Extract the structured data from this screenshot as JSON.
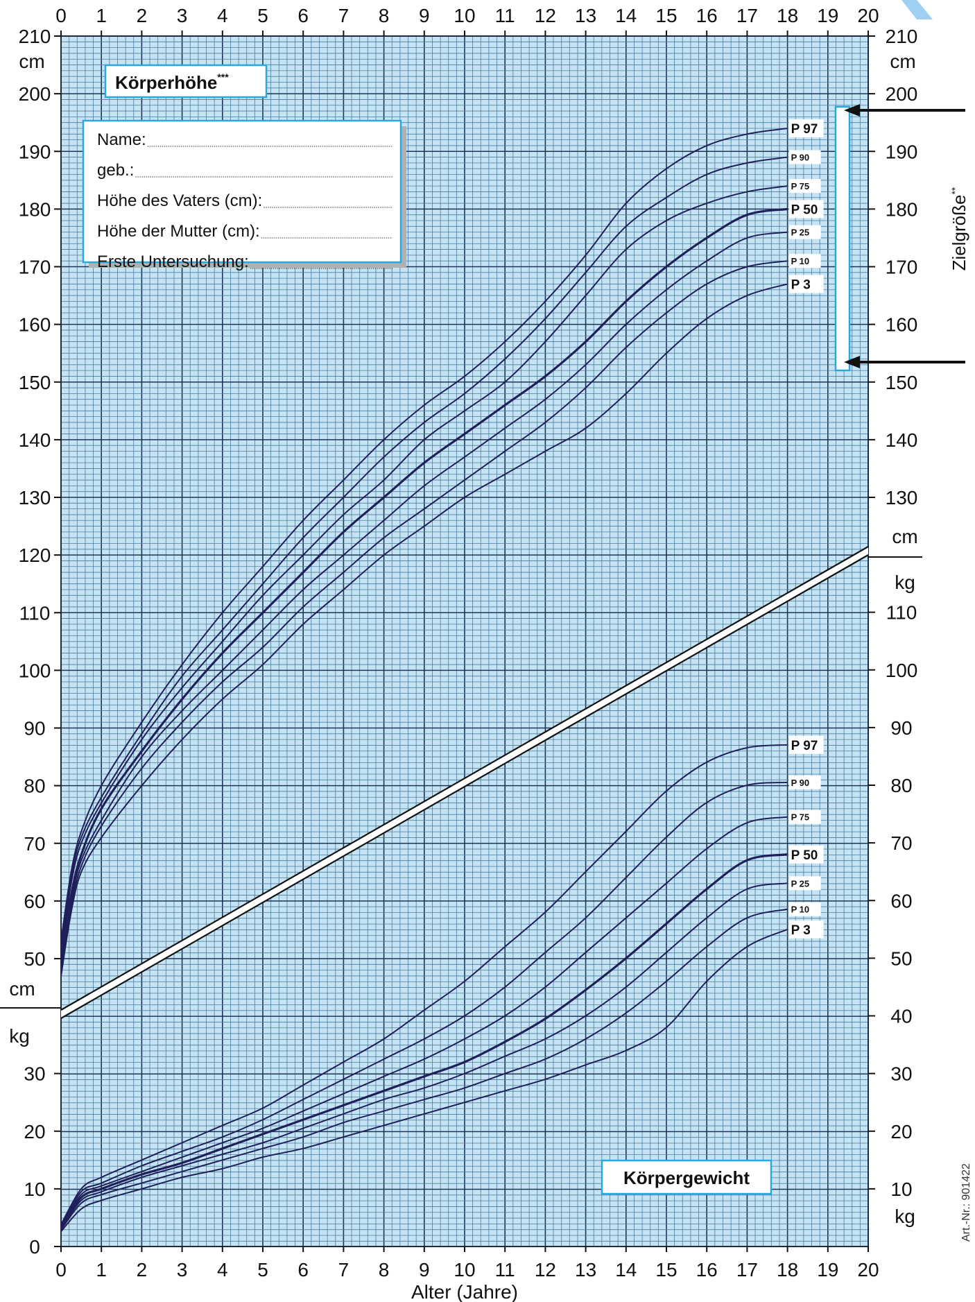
{
  "chart_data": [
    {
      "type": "line",
      "title": "Körperhöhe***",
      "xlabel": "Alter (Jahre)",
      "ylabel": "cm",
      "xlim": [
        0,
        20
      ],
      "ylim": [
        50,
        210
      ],
      "grid": true,
      "series": [
        {
          "name": "P 97",
          "x": [
            0,
            0.25,
            0.5,
            1,
            2,
            3,
            4,
            5,
            6,
            7,
            8,
            9,
            10,
            11,
            12,
            13,
            14,
            15,
            16,
            17,
            18
          ],
          "values": [
            53,
            65,
            72,
            80,
            91,
            101,
            110,
            118,
            126,
            133,
            140,
            146,
            151,
            157,
            164,
            172,
            181,
            187,
            191,
            193,
            194
          ]
        },
        {
          "name": "P 90",
          "x": [
            0,
            0.25,
            0.5,
            1,
            2,
            3,
            4,
            5,
            6,
            7,
            8,
            9,
            10,
            11,
            12,
            13,
            14,
            15,
            16,
            17,
            18
          ],
          "values": [
            52,
            64,
            71,
            78,
            89,
            99,
            107,
            115,
            123,
            130,
            137,
            143,
            148,
            154,
            161,
            169,
            177,
            182,
            186,
            188,
            189
          ]
        },
        {
          "name": "P 75",
          "x": [
            0,
            0.25,
            0.5,
            1,
            2,
            3,
            4,
            5,
            6,
            7,
            8,
            9,
            10,
            11,
            12,
            13,
            14,
            15,
            16,
            17,
            18
          ],
          "values": [
            51,
            63,
            70,
            77,
            88,
            97,
            105,
            113,
            120,
            127,
            133,
            140,
            145,
            150,
            157,
            165,
            173,
            178,
            181,
            183,
            184
          ]
        },
        {
          "name": "P 50",
          "x": [
            0,
            0.25,
            0.5,
            1,
            2,
            3,
            4,
            5,
            6,
            7,
            8,
            9,
            10,
            11,
            12,
            13,
            14,
            15,
            16,
            17,
            18
          ],
          "values": [
            50,
            61,
            68,
            76,
            86,
            95,
            103,
            110,
            117,
            124,
            130,
            136,
            141,
            146,
            151,
            157,
            164,
            170,
            175,
            179,
            180
          ]
        },
        {
          "name": "P 25",
          "x": [
            0,
            0.25,
            0.5,
            1,
            2,
            3,
            4,
            5,
            6,
            7,
            8,
            9,
            10,
            11,
            12,
            13,
            14,
            15,
            16,
            17,
            18
          ],
          "values": [
            49,
            60,
            67,
            74,
            85,
            93,
            100,
            107,
            114,
            120,
            126,
            132,
            137,
            142,
            147,
            153,
            160,
            166,
            171,
            175,
            176
          ]
        },
        {
          "name": "P 10",
          "x": [
            0,
            0.25,
            0.5,
            1,
            2,
            3,
            4,
            5,
            6,
            7,
            8,
            9,
            10,
            11,
            12,
            13,
            14,
            15,
            16,
            17,
            18
          ],
          "values": [
            48,
            59,
            66,
            73,
            83,
            91,
            98,
            104,
            111,
            117,
            123,
            128,
            133,
            138,
            143,
            149,
            156,
            162,
            167,
            170,
            171
          ]
        },
        {
          "name": "P 3",
          "x": [
            0,
            0.25,
            0.5,
            1,
            2,
            3,
            4,
            5,
            6,
            7,
            8,
            9,
            10,
            11,
            12,
            13,
            14,
            15,
            16,
            17,
            18
          ],
          "values": [
            47,
            58,
            65,
            71,
            80,
            88,
            95,
            101,
            108,
            114,
            120,
            125,
            130,
            134,
            138,
            142,
            148,
            155,
            161,
            165,
            167
          ]
        }
      ]
    },
    {
      "type": "line",
      "title": "Körpergewicht",
      "xlabel": "Alter (Jahre)",
      "ylabel": "kg",
      "xlim": [
        0,
        20
      ],
      "ylim": [
        0,
        90
      ],
      "grid": true,
      "series": [
        {
          "name": "P 97",
          "x": [
            0,
            0.5,
            1,
            2,
            3,
            4,
            5,
            6,
            7,
            8,
            9,
            10,
            11,
            12,
            13,
            14,
            15,
            16,
            17,
            18
          ],
          "values": [
            3.8,
            10,
            12,
            15,
            18,
            21,
            24,
            28,
            32,
            36,
            41,
            46,
            52,
            58,
            65,
            72,
            79,
            84,
            86.5,
            87
          ]
        },
        {
          "name": "P 90",
          "x": [
            0,
            0.5,
            1,
            2,
            3,
            4,
            5,
            6,
            7,
            8,
            9,
            10,
            11,
            12,
            13,
            14,
            15,
            16,
            17,
            18
          ],
          "values": [
            3.6,
            9.5,
            11,
            14,
            16.5,
            19,
            22,
            25.5,
            29,
            32.5,
            36,
            40,
            45,
            51,
            57,
            64,
            71,
            77,
            80,
            80.5
          ]
        },
        {
          "name": "P 75",
          "x": [
            0,
            0.5,
            1,
            2,
            3,
            4,
            5,
            6,
            7,
            8,
            9,
            10,
            11,
            12,
            13,
            14,
            15,
            16,
            17,
            18
          ],
          "values": [
            3.4,
            9,
            10.5,
            13,
            15.5,
            18,
            20.5,
            23.5,
            26.5,
            29.5,
            32.5,
            36,
            40,
            45,
            51,
            57,
            63,
            69,
            73.5,
            74.5
          ]
        },
        {
          "name": "P 50",
          "x": [
            0,
            0.5,
            1,
            2,
            3,
            4,
            5,
            6,
            7,
            8,
            9,
            10,
            11,
            12,
            13,
            14,
            15,
            16,
            17,
            18
          ],
          "values": [
            3.3,
            8.5,
            10,
            12.5,
            14.5,
            17,
            19.5,
            22,
            24.5,
            27,
            29.5,
            32,
            35.5,
            39.5,
            44.5,
            50,
            56,
            62,
            67,
            68
          ]
        },
        {
          "name": "P 25",
          "x": [
            0,
            0.5,
            1,
            2,
            3,
            4,
            5,
            6,
            7,
            8,
            9,
            10,
            11,
            12,
            13,
            14,
            15,
            16,
            17,
            18
          ],
          "values": [
            3.1,
            8,
            9.5,
            12,
            14,
            16,
            18,
            20.5,
            23,
            25.5,
            27.5,
            30,
            33,
            36,
            40,
            45,
            51,
            57,
            62,
            63
          ]
        },
        {
          "name": "P 10",
          "x": [
            0,
            0.5,
            1,
            2,
            3,
            4,
            5,
            6,
            7,
            8,
            9,
            10,
            11,
            12,
            13,
            14,
            15,
            16,
            17,
            18
          ],
          "values": [
            2.9,
            7.5,
            9,
            11,
            13,
            15,
            17,
            19,
            21.5,
            23.5,
            25.5,
            27.5,
            30,
            32.5,
            36,
            40.5,
            46,
            52,
            57,
            58.5
          ]
        },
        {
          "name": "P 3",
          "x": [
            0,
            0.5,
            1,
            2,
            3,
            4,
            5,
            6,
            7,
            8,
            9,
            10,
            11,
            12,
            13,
            14,
            15,
            16,
            17,
            18
          ],
          "values": [
            2.6,
            6.5,
            8,
            10,
            12,
            13.5,
            15.5,
            17,
            19,
            21,
            23,
            25,
            27,
            29,
            31.5,
            34,
            38,
            46,
            52,
            55
          ]
        }
      ]
    }
  ],
  "axes": {
    "x_ticks": [
      "0",
      "1",
      "2",
      "3",
      "4",
      "5",
      "6",
      "7",
      "8",
      "9",
      "10",
      "11",
      "12",
      "13",
      "14",
      "15",
      "16",
      "17",
      "18",
      "19",
      "20"
    ],
    "x_title": "Alter (Jahre)",
    "height_ticks": [
      "210",
      "200",
      "190",
      "180",
      "170",
      "160",
      "150",
      "140",
      "130",
      "120",
      "110",
      "100",
      "90",
      "80",
      "70",
      "60",
      "50"
    ],
    "weight_ticks_left": [
      "30",
      "20",
      "10",
      "0"
    ],
    "weight_ticks_right": [
      "110",
      "100",
      "90",
      "80",
      "70",
      "60",
      "50",
      "40",
      "30",
      "20",
      "10"
    ],
    "unit_cm": "cm",
    "unit_kg": "kg"
  },
  "panels": {
    "height_title": "Körperhöhe",
    "height_title_sup": "***",
    "weight_title": "Körpergewicht",
    "target_label": "Zielgröße",
    "target_sup": "**",
    "art_nr": "Art.-Nr.: 901422"
  },
  "form": {
    "fields": [
      "Name:",
      "geb.:",
      "Höhe des Vaters (cm):",
      "Höhe der Mutter (cm):",
      "Erste Untersuchung:"
    ]
  },
  "percentile_labels": [
    "P 97",
    "P 90",
    "P 75",
    "P 50",
    "P 25",
    "P 10",
    "P 3"
  ],
  "colors": {
    "plot_bg": "#c5e3f2",
    "grid_minor": "#4a7ea0",
    "grid_major": "#1a3656",
    "curve": "#1f1f5a",
    "accent": "#29a8e0",
    "arrow": "#111111"
  }
}
